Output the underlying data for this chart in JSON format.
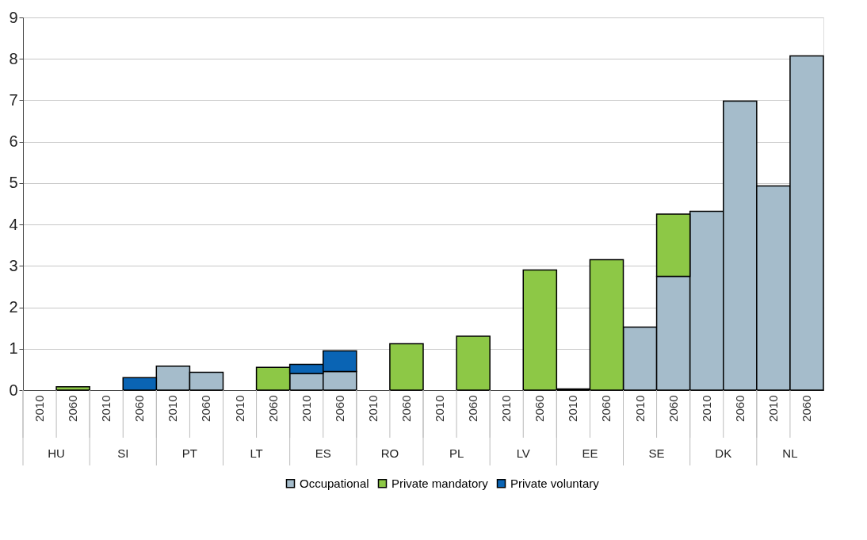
{
  "chart_data": {
    "type": "bar",
    "stacked": true,
    "categories": [
      "2010",
      "2060",
      "2010",
      "2060",
      "2010",
      "2060",
      "2010",
      "2060",
      "2010",
      "2060",
      "2010",
      "2060",
      "2010",
      "2060",
      "2010",
      "2060",
      "2010",
      "2060",
      "2010",
      "2060",
      "2010",
      "2060",
      "2010",
      "2060"
    ],
    "annotations": [
      "HU",
      "SI",
      "PT",
      "LT",
      "ES",
      "RO",
      "PL",
      "LV",
      "EE",
      "SE",
      "DK",
      "NL"
    ],
    "series": [
      {
        "name": "Occupational",
        "color": "#a5bccb",
        "values": [
          null,
          null,
          null,
          null,
          0.58,
          0.43,
          null,
          null,
          0.4,
          0.45,
          null,
          null,
          null,
          null,
          null,
          null,
          0.03,
          null,
          1.52,
          2.75,
          4.32,
          6.98,
          4.93,
          8.07
        ]
      },
      {
        "name": "Private mandatory",
        "color": "#8dc846",
        "values": [
          null,
          0.08,
          null,
          null,
          null,
          null,
          null,
          0.55,
          null,
          null,
          null,
          1.12,
          null,
          1.3,
          null,
          2.9,
          null,
          3.15,
          null,
          1.5,
          null,
          null,
          null,
          null
        ]
      },
      {
        "name": "Private voluntary",
        "color": "#0a64b4",
        "values": [
          null,
          null,
          null,
          0.3,
          null,
          null,
          null,
          null,
          0.22,
          0.5,
          null,
          null,
          null,
          null,
          null,
          null,
          null,
          null,
          null,
          null,
          null,
          null,
          null,
          null
        ]
      }
    ],
    "ylim": [
      0,
      9
    ],
    "yticks": [
      0,
      1,
      2,
      3,
      4,
      5,
      6,
      7,
      8,
      9
    ],
    "grid": "y",
    "legend": "bottom"
  }
}
